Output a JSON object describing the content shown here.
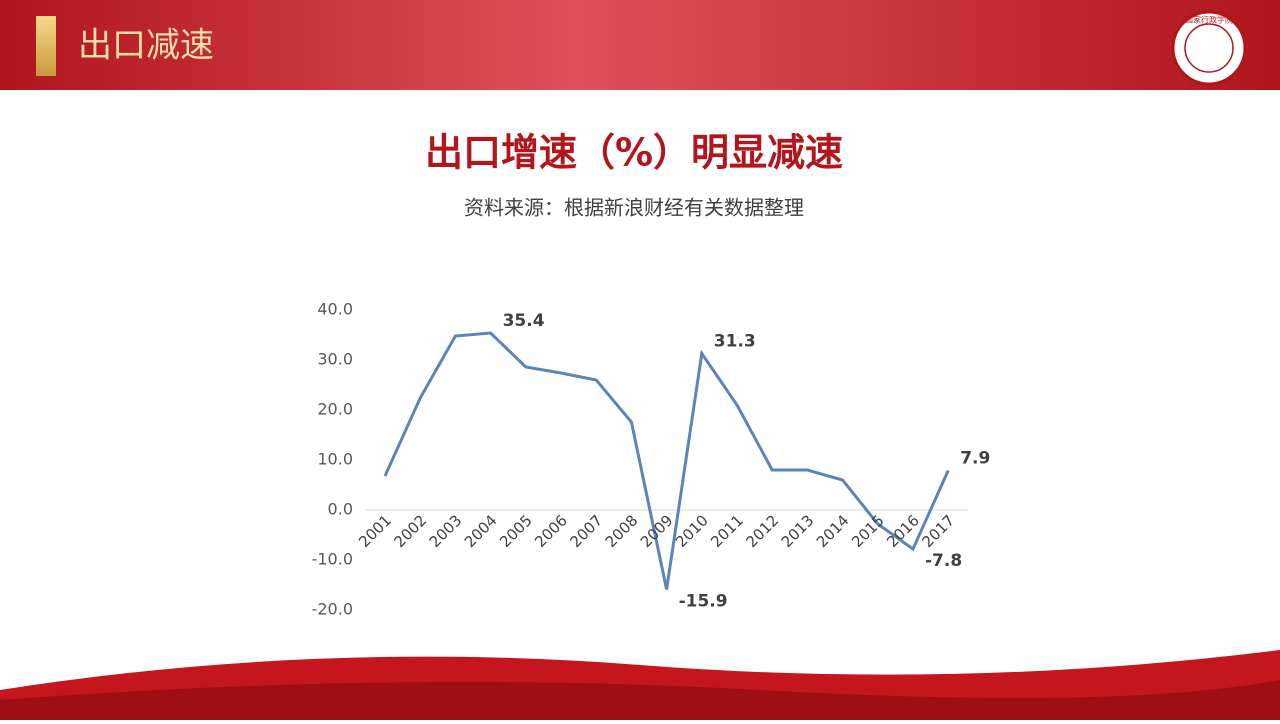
{
  "header": {
    "title": "出口减速",
    "logo": "国家行政学院"
  },
  "chart_data": {
    "type": "line",
    "title": "出口增速（%）明显减速",
    "subtitle": "资料来源：根据新浪财经有关数据整理",
    "categories": [
      "2001",
      "2002",
      "2003",
      "2004",
      "2005",
      "2006",
      "2007",
      "2008",
      "2009",
      "2010",
      "2011",
      "2012",
      "2013",
      "2014",
      "2015",
      "2016",
      "2017"
    ],
    "values": [
      6.8,
      22.4,
      34.8,
      35.4,
      28.6,
      27.4,
      26,
      17.6,
      -15.9,
      31.3,
      21,
      8,
      8,
      6,
      -2.8,
      -7.8,
      7.9
    ],
    "value_labels": [
      null,
      null,
      null,
      "35.4",
      null,
      null,
      null,
      null,
      "-15.9",
      "31.3",
      null,
      null,
      null,
      null,
      null,
      "-7.8",
      "7.9"
    ],
    "color": "#5b84b8",
    "ylim": [
      -20,
      40
    ],
    "yticks": [
      {
        "value": -20,
        "label": "-20.0"
      },
      {
        "value": -10,
        "label": "-10.0"
      },
      {
        "value": 0,
        "label": "0.0"
      },
      {
        "value": 10,
        "label": "10.0"
      },
      {
        "value": 20,
        "label": "20.0"
      },
      {
        "value": 30,
        "label": "30.0"
      },
      {
        "value": 40,
        "label": "40.0"
      }
    ]
  }
}
